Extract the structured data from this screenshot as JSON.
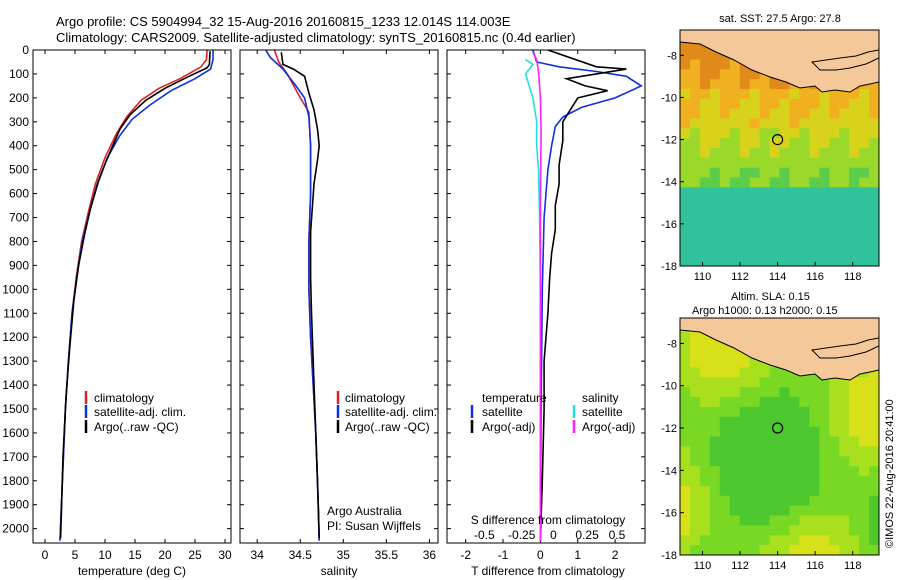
{
  "header": {
    "line1": "Argo profile: CS 5904994_32 15-Aug-2016 20160815_1233 12.014S 114.003E",
    "line2": "Climatology: CARS2009. Satellite-adjusted climatology: synTS_20160815.nc (0.4d earlier)"
  },
  "colors": {
    "climatology": "#e02020",
    "satellite": "#1030e0",
    "argo": "#000000",
    "salinity_satellite": "#20e0e0",
    "salinity_argo": "#ff20ff",
    "land": "#f5c89a"
  },
  "chart_data": [
    {
      "id": "temperature",
      "type": "line",
      "xlabel": "temperature (deg C)",
      "ylabel": "",
      "xlim": [
        -2,
        31
      ],
      "ylim": [
        2060,
        0
      ],
      "x_ticks": [
        0,
        5,
        10,
        15,
        20,
        25,
        30
      ],
      "y_ticks": [
        0,
        100,
        200,
        300,
        400,
        500,
        600,
        700,
        800,
        900,
        1000,
        1100,
        1200,
        1300,
        1400,
        1500,
        1600,
        1700,
        1800,
        1900,
        2000
      ],
      "legend": [
        "climatology",
        "satellite-adj. clim.",
        "Argo(..raw -QC)"
      ],
      "series": [
        {
          "name": "climatology",
          "color": "red",
          "points": [
            [
              27.0,
              0
            ],
            [
              26.9,
              40
            ],
            [
              26.0,
              70
            ],
            [
              22.5,
              120
            ],
            [
              19.0,
              160
            ],
            [
              16.0,
              210
            ],
            [
              13.6,
              280
            ],
            [
              11.9,
              350
            ],
            [
              10.0,
              450
            ],
            [
              8.4,
              560
            ],
            [
              7.2,
              680
            ],
            [
              6.1,
              800
            ],
            [
              5.2,
              950
            ],
            [
              4.5,
              1100
            ],
            [
              3.9,
              1300
            ],
            [
              3.4,
              1500
            ],
            [
              2.9,
              1800
            ],
            [
              2.5,
              2050
            ]
          ]
        },
        {
          "name": "satellite-adj. clim.",
          "color": "blue",
          "points": [
            [
              28.0,
              0
            ],
            [
              28.0,
              40
            ],
            [
              27.6,
              80
            ],
            [
              25.0,
              120
            ],
            [
              21.0,
              170
            ],
            [
              17.5,
              230
            ],
            [
              14.5,
              290
            ],
            [
              12.4,
              360
            ],
            [
              10.4,
              450
            ],
            [
              8.7,
              560
            ],
            [
              7.4,
              680
            ],
            [
              6.2,
              800
            ],
            [
              5.3,
              950
            ],
            [
              4.5,
              1100
            ],
            [
              3.9,
              1300
            ],
            [
              3.4,
              1500
            ],
            [
              2.9,
              1800
            ],
            [
              2.5,
              2050
            ]
          ]
        },
        {
          "name": "Argo(..raw -QC)",
          "color": "black",
          "points": [
            [
              27.5,
              5
            ],
            [
              27.4,
              60
            ],
            [
              27.0,
              75
            ],
            [
              24.0,
              110
            ],
            [
              20.0,
              160
            ],
            [
              16.8,
              210
            ],
            [
              14.2,
              270
            ],
            [
              12.5,
              330
            ],
            [
              11.3,
              400
            ],
            [
              10.1,
              470
            ],
            [
              8.9,
              550
            ],
            [
              7.6,
              660
            ],
            [
              6.6,
              770
            ],
            [
              5.6,
              900
            ],
            [
              4.8,
              1050
            ],
            [
              4.1,
              1250
            ],
            [
              3.5,
              1450
            ],
            [
              3.0,
              1700
            ],
            [
              2.6,
              2040
            ]
          ]
        }
      ]
    },
    {
      "id": "salinity",
      "type": "line",
      "xlabel": "salinity",
      "xlim": [
        33.8,
        36.1
      ],
      "ylim": [
        2060,
        0
      ],
      "x_ticks": [
        34,
        34.5,
        35,
        35.5,
        36
      ],
      "legend": [
        "climatology",
        "satellite-adj. clim.",
        "Argo(..raw -QC)"
      ],
      "series": [
        {
          "name": "climatology",
          "color": "red",
          "points": [
            [
              34.2,
              0
            ],
            [
              34.25,
              50
            ],
            [
              34.35,
              100
            ],
            [
              34.5,
              200
            ],
            [
              34.6,
              260
            ],
            [
              34.62,
              400
            ],
            [
              34.62,
              600
            ],
            [
              34.6,
              800
            ],
            [
              34.6,
              1000
            ],
            [
              34.62,
              1200
            ],
            [
              34.65,
              1400
            ],
            [
              34.68,
              1600
            ],
            [
              34.7,
              1800
            ],
            [
              34.72,
              2050
            ]
          ]
        },
        {
          "name": "satellite-adj. clim.",
          "color": "blue",
          "points": [
            [
              34.1,
              0
            ],
            [
              34.15,
              30
            ],
            [
              34.3,
              80
            ],
            [
              34.45,
              150
            ],
            [
              34.55,
              200
            ],
            [
              34.6,
              280
            ],
            [
              34.62,
              400
            ],
            [
              34.62,
              600
            ],
            [
              34.6,
              800
            ],
            [
              34.6,
              1000
            ],
            [
              34.62,
              1200
            ],
            [
              34.65,
              1400
            ],
            [
              34.68,
              1600
            ],
            [
              34.7,
              1800
            ],
            [
              34.72,
              2050
            ]
          ]
        },
        {
          "name": "Argo(..raw -QC)",
          "color": "black",
          "points": [
            [
              34.28,
              10
            ],
            [
              34.3,
              60
            ],
            [
              34.42,
              80
            ],
            [
              34.55,
              110
            ],
            [
              34.6,
              180
            ],
            [
              34.66,
              250
            ],
            [
              34.7,
              330
            ],
            [
              34.72,
              400
            ],
            [
              34.7,
              460
            ],
            [
              34.66,
              560
            ],
            [
              34.64,
              660
            ],
            [
              34.62,
              760
            ],
            [
              34.62,
              850
            ],
            [
              34.62,
              950
            ],
            [
              34.63,
              1100
            ],
            [
              34.65,
              1300
            ],
            [
              34.67,
              1500
            ],
            [
              34.69,
              1700
            ],
            [
              34.71,
              1900
            ],
            [
              34.72,
              2040
            ]
          ]
        }
      ],
      "annotation": [
        "Argo Australia",
        "PI: Susan Wijffels"
      ]
    },
    {
      "id": "difference",
      "type": "line",
      "xlabel": "T difference from climatology",
      "top_xlabel": "S difference from climatology",
      "xlim": [
        -2.5,
        2.8
      ],
      "ylim": [
        2060,
        0
      ],
      "x_ticks": [
        -2,
        -1,
        0,
        1,
        2
      ],
      "top_ticks": [
        "-0.5",
        "-0.25",
        "0",
        "0.25",
        "0.5"
      ],
      "legend_left_title": "temperature",
      "legend_right_title": "salinity",
      "legend": [
        "satellite",
        "Argo(-adj)",
        "satellite",
        "Argo(-adj)"
      ],
      "series": [
        {
          "name": "T satellite",
          "color": "blue",
          "points": [
            [
              -0.2,
              0
            ],
            [
              -0.1,
              50
            ],
            [
              0.5,
              70
            ],
            [
              1.5,
              90
            ],
            [
              2.3,
              110
            ],
            [
              2.7,
              150
            ],
            [
              2.0,
              200
            ],
            [
              1.1,
              240
            ],
            [
              0.6,
              280
            ],
            [
              0.4,
              320
            ],
            [
              0.3,
              400
            ],
            [
              0.2,
              500
            ],
            [
              0.1,
              700
            ],
            [
              0.05,
              1000
            ],
            [
              0.02,
              1500
            ],
            [
              0.0,
              2050
            ]
          ]
        },
        {
          "name": "T Argo(-adj)",
          "color": "black",
          "points": [
            [
              0.2,
              0
            ],
            [
              1.5,
              70
            ],
            [
              2.3,
              80
            ],
            [
              1.5,
              100
            ],
            [
              0.7,
              120
            ],
            [
              1.2,
              150
            ],
            [
              1.8,
              170
            ],
            [
              1.0,
              200
            ],
            [
              0.8,
              250
            ],
            [
              0.6,
              300
            ],
            [
              0.6,
              380
            ],
            [
              0.5,
              480
            ],
            [
              0.5,
              560
            ],
            [
              0.4,
              650
            ],
            [
              0.4,
              750
            ],
            [
              0.3,
              850
            ],
            [
              0.25,
              950
            ],
            [
              0.2,
              1100
            ],
            [
              0.1,
              1300
            ],
            [
              0.1,
              1500
            ],
            [
              0.05,
              1800
            ],
            [
              0.0,
              2050
            ]
          ]
        },
        {
          "name": "S satellite",
          "color": "cyan",
          "points": [
            [
              -0.4,
              40
            ],
            [
              -0.2,
              60
            ],
            [
              -0.4,
              100
            ],
            [
              -0.2,
              200
            ],
            [
              -0.1,
              300
            ],
            [
              -0.1,
              400
            ],
            [
              -0.05,
              500
            ],
            [
              -0.02,
              700
            ],
            [
              0.0,
              1000
            ],
            [
              0.0,
              2050
            ]
          ]
        },
        {
          "name": "S Argo(-adj)",
          "color": "magenta",
          "points": [
            [
              -0.2,
              10
            ],
            [
              -0.1,
              40
            ],
            [
              -0.05,
              90
            ],
            [
              0.0,
              200
            ],
            [
              0.02,
              350
            ],
            [
              0.0,
              600
            ],
            [
              0.0,
              1000
            ],
            [
              0.0,
              1500
            ],
            [
              0.0,
              2050
            ]
          ]
        }
      ]
    },
    {
      "id": "sst_map",
      "type": "heatmap",
      "title": "sat. SST: 27.5 Argo: 27.8",
      "xlim": [
        108.8,
        119.4
      ],
      "ylim": [
        -18,
        -6.8
      ],
      "x_ticks": [
        110,
        112,
        114,
        116,
        118
      ],
      "y_ticks": [
        -8,
        -10,
        -12,
        -14,
        -16,
        -18
      ],
      "marker": {
        "lon": 114.0,
        "lat": -12.0
      }
    },
    {
      "id": "sla_map",
      "type": "heatmap",
      "title": "Altim. SLA: 0.15",
      "subtitle": "Argo h1000: 0.13 h2000: 0.15",
      "xlim": [
        108.8,
        119.4
      ],
      "ylim": [
        -18,
        -6.8
      ],
      "x_ticks": [
        110,
        112,
        114,
        116,
        118
      ],
      "y_ticks": [
        -8,
        -10,
        -12,
        -14,
        -16,
        -18
      ],
      "marker": {
        "lon": 114.0,
        "lat": -12.0
      }
    }
  ],
  "footer": {
    "credit": "©IMOS 22-Aug-2016 20:41:00"
  }
}
